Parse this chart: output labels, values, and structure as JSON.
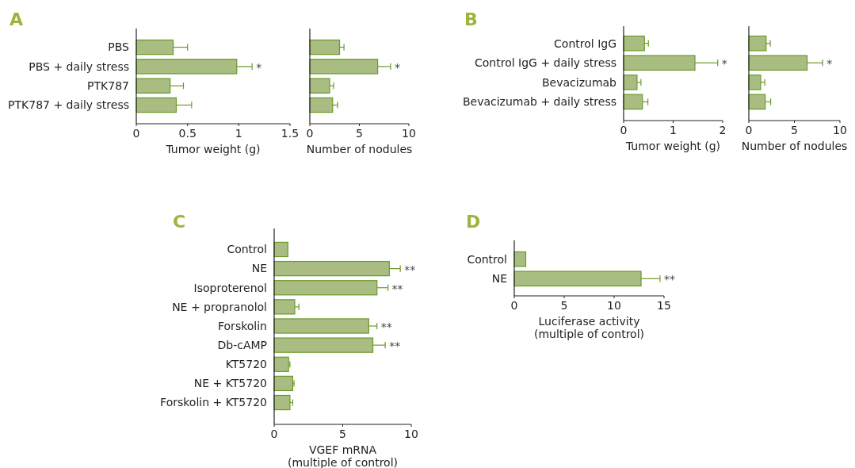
{
  "chart_data": [
    {
      "type": "bar",
      "orientation": "horizontal",
      "title": "A",
      "categories": [
        "PBS",
        "PBS + daily stress",
        "PTK787",
        "PTK787 + daily stress"
      ],
      "values": [
        0.36,
        0.98,
        0.33,
        0.39
      ],
      "errors": [
        0.14,
        0.15,
        0.13,
        0.15
      ],
      "color": "#a9bd82",
      "xlim": [
        0,
        1.5
      ],
      "xticks": [
        0,
        0.5,
        1,
        1.5
      ],
      "xlabel": "Tumor weight (g)",
      "annotations": [
        {
          "text": "*",
          "x": 1.13,
          "y": "PBS + daily stress"
        }
      ]
    },
    {
      "type": "bar",
      "orientation": "horizontal",
      "categories": [
        null,
        null,
        null,
        null
      ],
      "values": [
        3.0,
        6.85,
        2.0,
        2.3
      ],
      "errors": [
        0.45,
        1.3,
        0.4,
        0.5
      ],
      "color": "#a9bd82",
      "xlim": [
        0,
        10
      ],
      "xticks": [
        0,
        5,
        10
      ],
      "xlabel": "Number of nodules",
      "tick_labels": "x",
      "annotations": [
        {
          "text": "*",
          "x": 8.15
        }
      ]
    },
    {
      "type": "bar",
      "orientation": "horizontal",
      "title": "B",
      "categories": [
        "Control IgG",
        "Control IgG + daily stress",
        "Bevacizumab",
        "Bevacizumab + daily stress"
      ],
      "values": [
        0.42,
        1.44,
        0.27,
        0.38
      ],
      "errors": [
        0.08,
        0.46,
        0.08,
        0.11
      ],
      "color": "#a9bd82",
      "xlim": [
        0,
        2
      ],
      "xticks": [
        0,
        1,
        2
      ],
      "xlabel": "Tumor weight (g)",
      "annotations": [
        {
          "text": "*",
          "x": 1.9,
          "y": "Control IgG + daily stress"
        }
      ]
    },
    {
      "type": "bar",
      "orientation": "horizontal",
      "categories": [
        null,
        null,
        null,
        null
      ],
      "values": [
        1.9,
        6.4,
        1.3,
        1.8
      ],
      "errors": [
        0.45,
        1.7,
        0.45,
        0.6
      ],
      "color": "#a9bd82",
      "xlim": [
        0,
        10
      ],
      "xticks": [
        0,
        5,
        10
      ],
      "xlabel": "Number of nodules",
      "tick_labels": "x",
      "annotations": [
        {
          "text": "*",
          "x": 8.1
        }
      ]
    },
    {
      "type": "bar",
      "orientation": "horizontal",
      "title": "C",
      "categories": [
        "Control",
        "NE",
        "Isoproterenol",
        "NE + propranolol",
        "Forskolin",
        "Db-cAMP",
        "KT5720",
        "NE + KT5720",
        "Forskolin + KT5720"
      ],
      "values": [
        1.0,
        8.4,
        7.5,
        1.5,
        6.9,
        7.2,
        1.05,
        1.35,
        1.15
      ],
      "errors": [
        null,
        0.8,
        0.8,
        0.3,
        0.6,
        0.9,
        0.1,
        0.1,
        0.2
      ],
      "color": "#a9bd82",
      "xlim": [
        0,
        10
      ],
      "xticks": [
        0,
        5,
        10
      ],
      "xlabel": "VGEF mRNA\n(multiple of control)",
      "annotations": [
        {
          "text": "**",
          "x": 9.2,
          "y": "NE"
        },
        {
          "text": "**",
          "x": 8.3,
          "y": "Isoproterenol"
        },
        {
          "text": "**",
          "x": 7.5,
          "y": "Forskolin"
        },
        {
          "text": "**",
          "x": 8.1,
          "y": "Db-cAMP"
        }
      ]
    },
    {
      "type": "bar",
      "orientation": "horizontal",
      "title": "D",
      "categories": [
        "Control",
        "NE"
      ],
      "values": [
        1.15,
        12.7
      ],
      "errors": [
        null,
        1.9
      ],
      "color": "#a9bd82",
      "xlim": [
        0,
        15
      ],
      "xticks": [
        0,
        5,
        10,
        15
      ],
      "xlabel": "Luciferase activity\n(multiple of control)",
      "annotations": [
        {
          "text": "**",
          "x": 14.6,
          "y": "NE"
        }
      ]
    }
  ]
}
